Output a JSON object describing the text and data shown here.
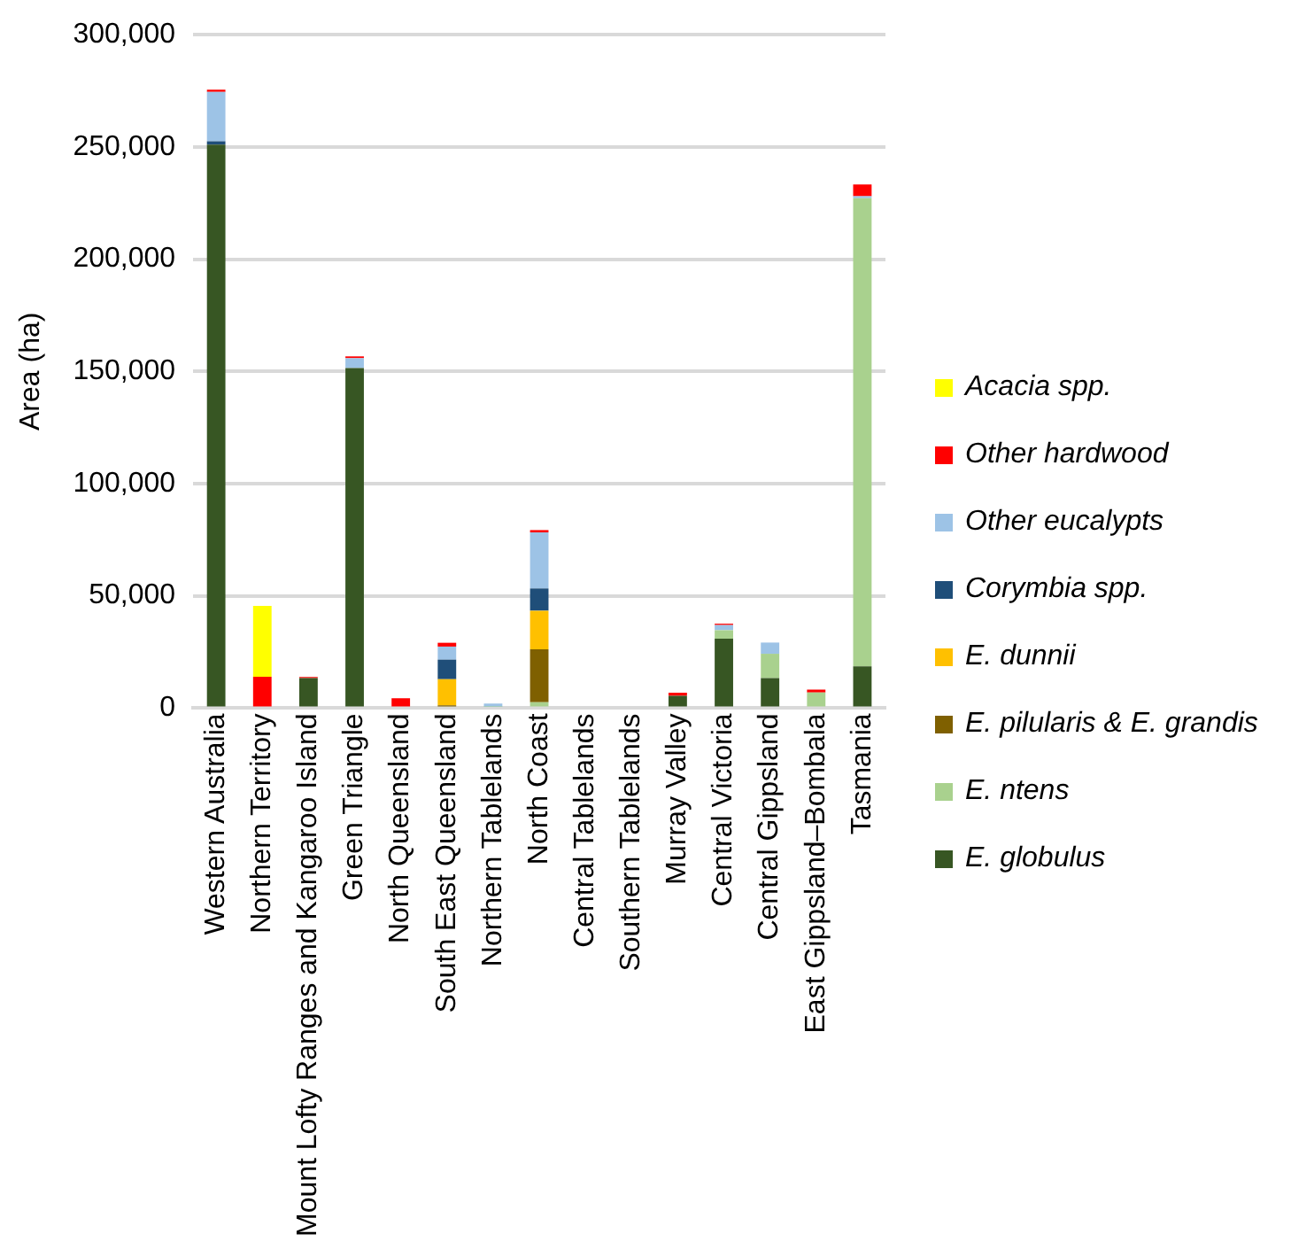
{
  "chart_data": {
    "type": "bar",
    "stacked": true,
    "ylabel": "Area (ha)",
    "categories": [
      "Western Australia",
      "Northern Territory",
      "Mount Lofty Ranges and Kangaroo Island",
      "Green Triangle",
      "North Queensland",
      "South East Queensland",
      "Northern Tablelands",
      "North Coast",
      "Central Tablelands",
      "Southern Tablelands",
      "Murray Valley",
      "Central Victoria",
      "Central Gippsland",
      "East Gippsland–Bombala",
      "Tasmania"
    ],
    "series": [
      {
        "name": "E. globulus",
        "color": "#375623",
        "values": [
          251000,
          null,
          13400,
          151500,
          null,
          null,
          null,
          null,
          null,
          null,
          5500,
          30900,
          13400,
          null,
          18600
        ]
      },
      {
        "name": "E. ntens",
        "color": "#a9d18e",
        "values": [
          null,
          null,
          null,
          null,
          null,
          null,
          500,
          2600,
          null,
          null,
          null,
          3800,
          10800,
          7000,
          208600
        ]
      },
      {
        "name": "E. pilularis & E. grandis",
        "color": "#7f6000",
        "values": [
          null,
          null,
          null,
          null,
          null,
          1200,
          null,
          23600,
          null,
          null,
          null,
          null,
          null,
          null,
          null
        ]
      },
      {
        "name": "E. dunnii",
        "color": "#ffc000",
        "values": [
          null,
          null,
          null,
          null,
          null,
          11700,
          null,
          17200,
          null,
          null,
          null,
          null,
          null,
          null,
          null
        ]
      },
      {
        "name": "Corymbia spp.",
        "color": "#1f4e79",
        "values": [
          1500,
          null,
          null,
          null,
          null,
          8700,
          null,
          9900,
          null,
          null,
          null,
          null,
          null,
          null,
          null
        ]
      },
      {
        "name": "Other eucalypts",
        "color": "#9dc3e6",
        "values": [
          22000,
          null,
          null,
          4400,
          null,
          5800,
          1500,
          25000,
          null,
          null,
          null,
          2300,
          5000,
          null,
          900
        ]
      },
      {
        "name": "Other hardwood",
        "color": "#ff0000",
        "values": [
          1000,
          14000,
          500,
          800,
          4400,
          1700,
          null,
          1000,
          null,
          null,
          1400,
          600,
          null,
          1200,
          5200
        ]
      },
      {
        "name": "Acacia spp.",
        "color": "#ffff00",
        "values": [
          null,
          31500,
          null,
          null,
          null,
          null,
          null,
          null,
          null,
          null,
          null,
          null,
          null,
          null,
          null
        ]
      }
    ],
    "ylim": [
      0,
      300000
    ],
    "yticks": [
      0,
      {
        "value": 50000,
        "label": "50,000"
      },
      {
        "value": 100000,
        "label": "100,000"
      },
      {
        "value": 150000,
        "label": "150,000"
      },
      {
        "value": 200000,
        "label": "200,000"
      },
      {
        "value": 250000,
        "label": "250,000"
      },
      {
        "value": 300000,
        "label": "300,000"
      }
    ],
    "grid": "y",
    "legend": "right"
  }
}
